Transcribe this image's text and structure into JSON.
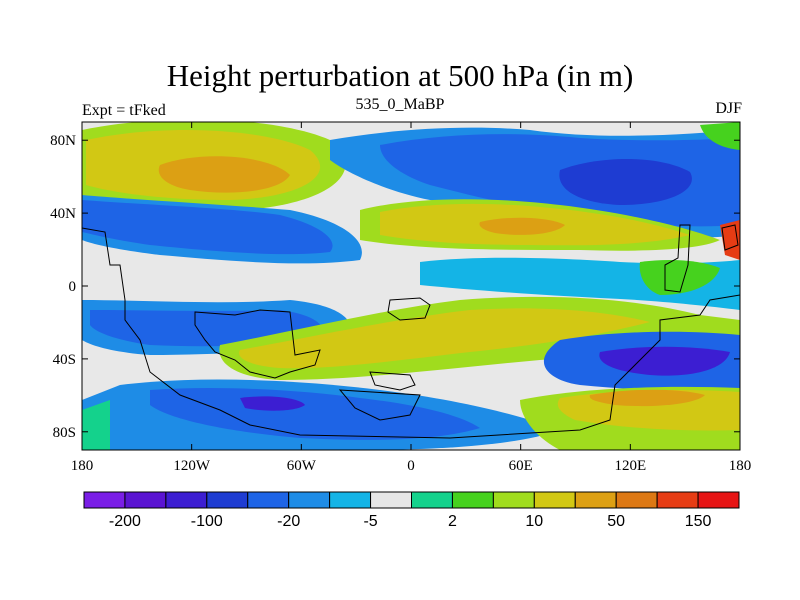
{
  "title": "Height perturbation at 500 hPa (in m)",
  "left_label": "Expt = tFked",
  "center_label": "535_0_MaBP",
  "right_label": "DJF",
  "map": {
    "lon_range": [
      -180,
      180
    ],
    "lat_range": [
      -90,
      90
    ],
    "lon_ticks": [
      {
        "value": -180,
        "label": "180"
      },
      {
        "value": -120,
        "label": "120W"
      },
      {
        "value": -60,
        "label": "60W"
      },
      {
        "value": 0,
        "label": "0"
      },
      {
        "value": 60,
        "label": "60E"
      },
      {
        "value": 120,
        "label": "120E"
      },
      {
        "value": 180,
        "label": "180"
      }
    ],
    "lat_ticks": [
      {
        "value": 80,
        "label": "80N"
      },
      {
        "value": 40,
        "label": "40N"
      },
      {
        "value": 0,
        "label": "0"
      },
      {
        "value": -40,
        "label": "40S"
      },
      {
        "value": -80,
        "label": "80S"
      }
    ]
  },
  "colorbar": {
    "colors": [
      "#7a1ee6",
      "#5a14d2",
      "#3c1ed2",
      "#1e3cd2",
      "#1e64e6",
      "#1e8ce6",
      "#14b4e6",
      "#e6e6e6",
      "#14d28c",
      "#46d21e",
      "#a0dc1e",
      "#d2c814",
      "#dca014",
      "#dc7814",
      "#e63c14",
      "#e61414"
    ],
    "labels": [
      {
        "after_box": 1,
        "label": "-200"
      },
      {
        "after_box": 3,
        "label": "-100"
      },
      {
        "after_box": 5,
        "label": "-20"
      },
      {
        "after_box": 7,
        "label": "-5"
      },
      {
        "after_box": 9,
        "label": "2"
      },
      {
        "after_box": 11,
        "label": "10"
      },
      {
        "after_box": 13,
        "label": "50"
      },
      {
        "after_box": 15,
        "label": "150"
      }
    ]
  }
}
